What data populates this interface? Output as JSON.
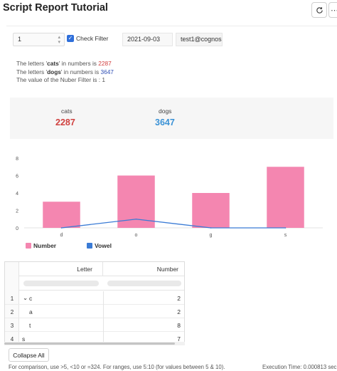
{
  "header": {
    "title": "Script Report Tutorial",
    "refresh_icon": "refresh-icon",
    "more_icon": "more-icon"
  },
  "controls": {
    "number_select": {
      "value": "1"
    },
    "check_filter": {
      "label": "Check Filter",
      "checked": true
    },
    "date_value": "2021-09-03",
    "user_value": "test1@cognos"
  },
  "messages": {
    "line1": {
      "prefix": "The letters '",
      "word": "cats",
      "middle": "' in numbers is ",
      "value": "2287"
    },
    "line2": {
      "prefix": "The letters '",
      "word": "dogs",
      "middle": "' in numbers is ",
      "value": "3647"
    },
    "line3": {
      "text": "The value of the Nuber Filter is : 1"
    }
  },
  "kpis": [
    {
      "label": "cats",
      "value": "2287",
      "color": "#d0413f"
    },
    {
      "label": "dogs",
      "value": "3647",
      "color": "#3a92d6"
    }
  ],
  "chart_data": {
    "type": "bar",
    "categories": [
      "d",
      "o",
      "g",
      "s"
    ],
    "series": [
      {
        "name": "Number",
        "type": "bar",
        "values": [
          3,
          6,
          4,
          7
        ],
        "color": "#f486b0"
      },
      {
        "name": "Vowel",
        "type": "line",
        "values": [
          0,
          1,
          0,
          0
        ],
        "color": "#3a7bd5"
      }
    ],
    "ylim": [
      0,
      8
    ],
    "yticks": [
      0,
      2,
      4,
      6,
      8
    ],
    "legend_position": "bottom-left",
    "grid": false
  },
  "table": {
    "columns": [
      "Letter",
      "Number"
    ],
    "rows": [
      {
        "index": "1",
        "letter": "c",
        "number": "2",
        "group": true,
        "indent": 0
      },
      {
        "index": "2",
        "letter": "a",
        "number": "2",
        "group": false,
        "indent": 1
      },
      {
        "index": "3",
        "letter": "t",
        "number": "8",
        "group": false,
        "indent": 1
      },
      {
        "index": "4",
        "letter": "s",
        "number": "7",
        "group": false,
        "indent": 0
      }
    ]
  },
  "footer": {
    "collapse_label": "Collapse All",
    "hint": "For comparison, use >5, <10 or =324. For ranges, use 5:10 (for values between 5 & 10).",
    "execution_time": "Execution Time: 0.000813 sec"
  }
}
